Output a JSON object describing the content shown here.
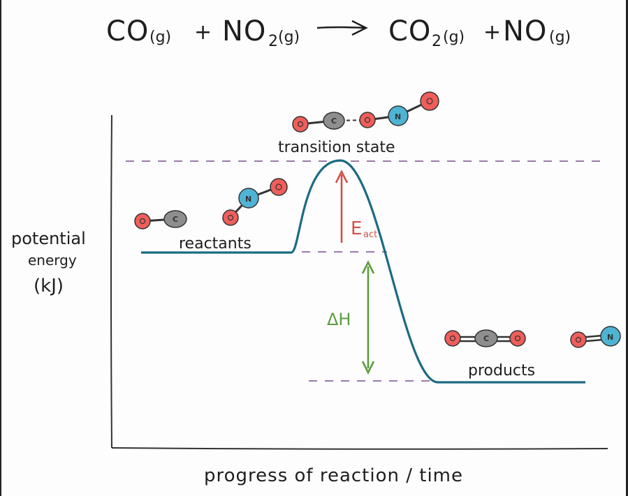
{
  "equation": {
    "reactant_1": "CO",
    "reactant_1_state": "(g)",
    "plus_1": "+",
    "reactant_2": "NO",
    "reactant_2_sub": "2",
    "reactant_2_state": "(g)",
    "product_1": "CO",
    "product_1_sub": "2",
    "product_1_state": "(g)",
    "plus_2": "+",
    "product_2": "NO",
    "product_2_state": "(g)"
  },
  "labels": {
    "transition_state": "transition state",
    "reactants": "reactants",
    "products": "products",
    "activation_energy": "E",
    "activation_energy_sub": "act",
    "enthalpy_change": "ΔH"
  },
  "axes": {
    "y_label_line1": "potential",
    "y_label_line2": "energy",
    "y_label_line3": "(kJ)",
    "x_label": "progress of reaction / time"
  },
  "atoms": {
    "carbon": "C",
    "nitrogen": "N",
    "oxygen": "O"
  },
  "colors": {
    "curve": "#1c6b82",
    "activation_arrow": "#d4504a",
    "enthalpy_arrow": "#5c9c3e",
    "dashed_line": "#7a4f8f",
    "oxygen": "#ef5e5a",
    "carbon": "#8e8e8e",
    "nitrogen": "#4fb3d3"
  }
}
